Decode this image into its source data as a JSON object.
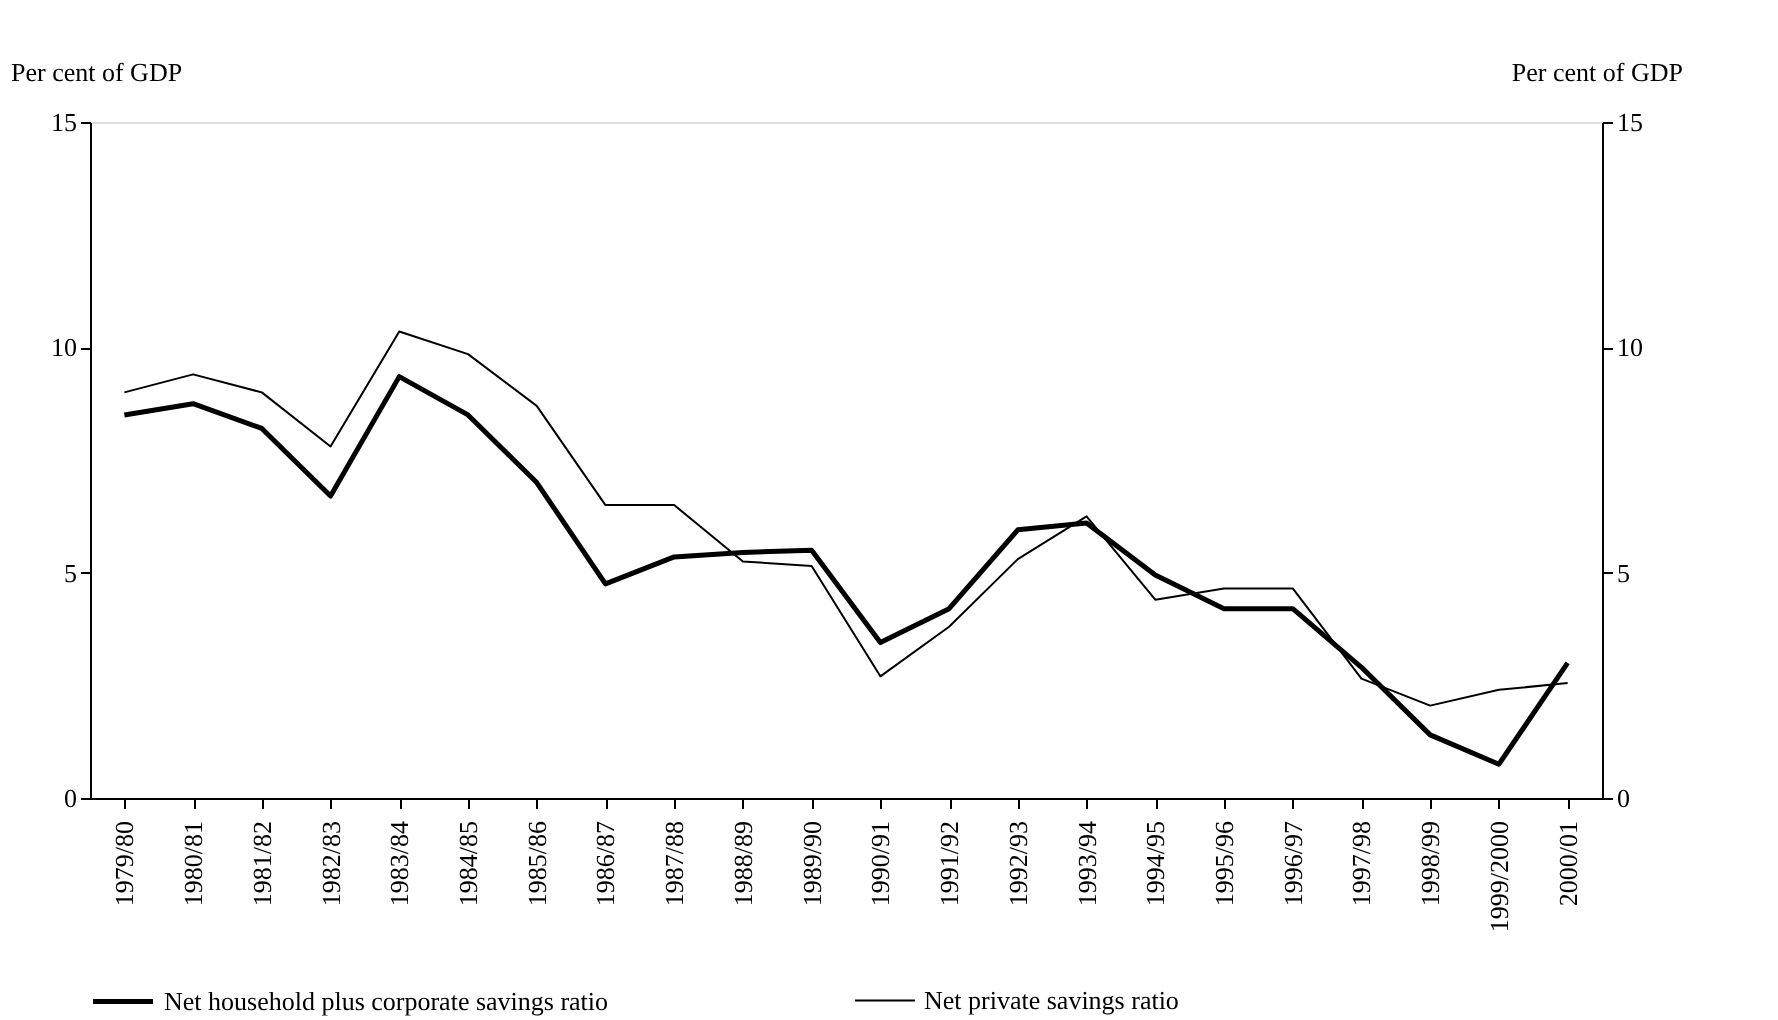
{
  "chart_data": {
    "type": "line",
    "ylabel": "Per cent of GDP",
    "y2label": "Per cent of GDP",
    "categories": [
      "1979/80",
      "1980/81",
      "1981/82",
      "1982/83",
      "1983/84",
      "1984/85",
      "1985/86",
      "1986/87",
      "1987/88",
      "1988/89",
      "1989/90",
      "1990/91",
      "1991/92",
      "1992/93",
      "1993/94",
      "1994/95",
      "1995/96",
      "1996/97",
      "1997/98",
      "1998/99",
      "1999/2000",
      "2000/01"
    ],
    "series": [
      {
        "name": "Net household plus corporate savings ratio",
        "color": "#000000",
        "values": [
          8.5,
          8.75,
          8.2,
          6.7,
          9.35,
          8.5,
          7.0,
          4.75,
          5.35,
          5.45,
          5.5,
          3.45,
          4.2,
          5.95,
          6.1,
          4.95,
          4.2,
          4.2,
          2.9,
          1.4,
          0.75,
          3.0
        ]
      },
      {
        "name": "Net private savings ratio",
        "color": "#000000",
        "values": [
          9.0,
          9.4,
          9.0,
          7.8,
          10.35,
          9.85,
          8.7,
          6.5,
          6.5,
          5.25,
          5.15,
          2.7,
          3.8,
          5.3,
          6.25,
          4.4,
          4.65,
          4.65,
          2.65,
          2.05,
          2.4,
          2.55
        ]
      }
    ],
    "ylim": [
      0,
      15
    ],
    "yticks": [
      0,
      5,
      10,
      15
    ],
    "y2lim": [
      0,
      15
    ],
    "y2ticks": [
      0,
      5,
      10,
      15
    ],
    "grid": false,
    "legend": "bottom",
    "line_style": "solid"
  }
}
